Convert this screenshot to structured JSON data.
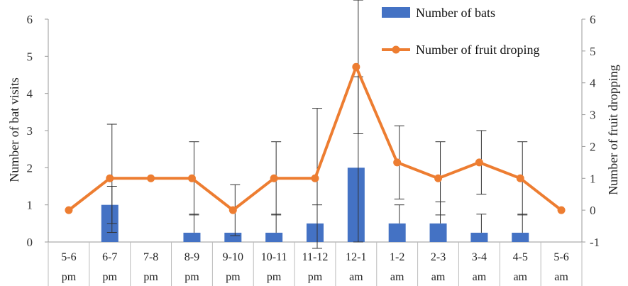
{
  "chart_data": {
    "type": "bar",
    "categories": [
      [
        "5-6",
        "pm"
      ],
      [
        "6-7",
        "pm"
      ],
      [
        "7-8",
        "pm"
      ],
      [
        "8-9",
        "pm"
      ],
      [
        "9-10",
        "pm"
      ],
      [
        "10-11",
        "pm"
      ],
      [
        "11-12",
        "pm"
      ],
      [
        "12-1",
        "am"
      ],
      [
        "1-2",
        "am"
      ],
      [
        "2-3",
        "am"
      ],
      [
        "3-4",
        "am"
      ],
      [
        "4-5",
        "am"
      ],
      [
        "5-6",
        "am"
      ]
    ],
    "series": [
      {
        "name": "Number of bats",
        "type": "bar",
        "axis": "left",
        "color": "#4472C4",
        "values": [
          0,
          1,
          0,
          0.25,
          0.25,
          0.25,
          0.5,
          2,
          0.5,
          0.5,
          0.25,
          0.25,
          0
        ],
        "error": [
          0,
          0.5,
          0,
          0.5,
          0.0,
          0.5,
          0.5,
          2.45,
          0.5,
          0.58,
          0.5,
          0.5,
          0
        ],
        "error_both": [
          false,
          true,
          false,
          false,
          false,
          false,
          false,
          true,
          false,
          false,
          false,
          false,
          false
        ]
      },
      {
        "name": "Number of fruit droping",
        "type": "line",
        "axis": "right",
        "color": "#ED7D31",
        "values": [
          0,
          1,
          1,
          1,
          0,
          1,
          1,
          4.5,
          1.5,
          1,
          1.5,
          1,
          0
        ],
        "error": [
          0,
          1.7,
          0,
          1.15,
          0.8,
          1.15,
          2.2,
          2.1,
          1.15,
          1.15,
          1.0,
          1.15,
          0
        ]
      }
    ],
    "ylabel": "Number of bat visits",
    "ylabel_right": "Number of fruit dropping",
    "ylim": [
      0,
      6
    ],
    "ylim_right": [
      -1,
      6
    ],
    "yticks": [
      "0",
      "1",
      "2",
      "3",
      "4",
      "5",
      "6"
    ],
    "yticks_right": [
      "-1",
      "0",
      "1",
      "2",
      "3",
      "4",
      "5",
      "6"
    ],
    "legend_position": "top-right",
    "grid": false
  }
}
